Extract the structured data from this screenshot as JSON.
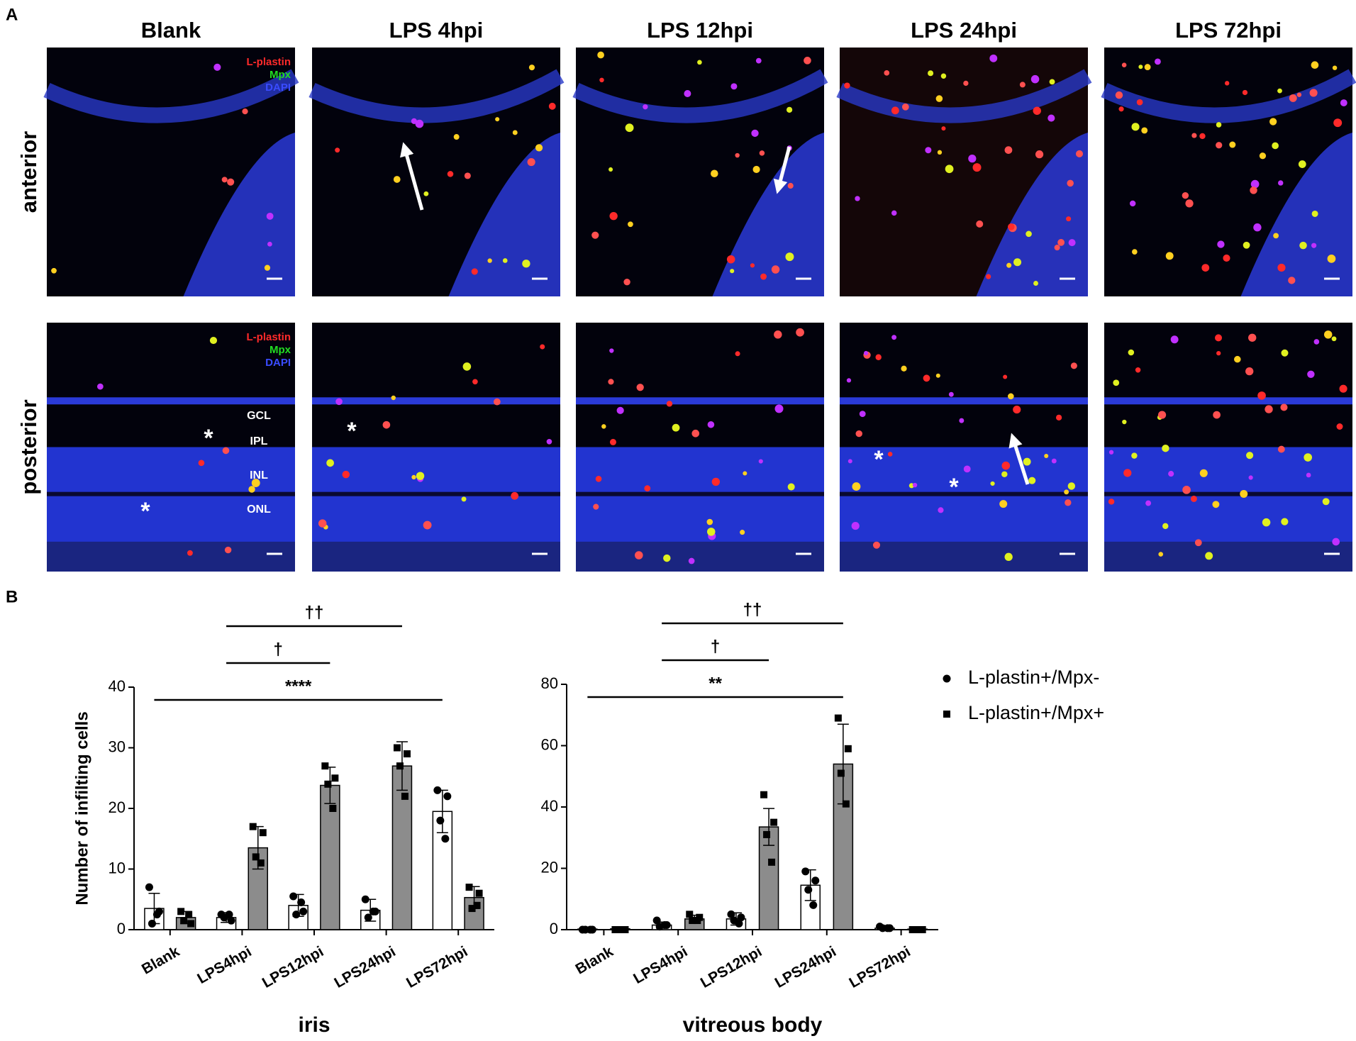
{
  "panel_labels": [
    "A",
    "B"
  ],
  "panel_a": {
    "columns": [
      "Blank",
      "LPS 4hpi",
      "LPS 12hpi",
      "LPS 24hpi",
      "LPS 72hpi"
    ],
    "rows": [
      "anterior",
      "posterior"
    ],
    "channels": [
      {
        "name": "L-plastin",
        "color": "#ff2a2a"
      },
      {
        "name": "Mpx",
        "color": "#22dd22"
      },
      {
        "name": "DAPI",
        "color": "#3a4cff"
      }
    ],
    "layers": [
      "GCL",
      "IPL",
      "INL",
      "ONL"
    ],
    "asterisk": "*"
  },
  "chart_data": [
    {
      "type": "bar",
      "xlabel": "iris",
      "ylabel": "Number of infilting cells",
      "categories": [
        "Blank",
        "LPS4hpi",
        "LPS12hpi",
        "LPS24hpi",
        "LPS72hpi"
      ],
      "ylim": [
        0,
        40
      ],
      "yticks": [
        0,
        10,
        20,
        30,
        40
      ],
      "series": [
        {
          "color": "#ffffff",
          "marker": "circle",
          "values": [
            3.5,
            2,
            4,
            3.2,
            19.5
          ],
          "errors": [
            2.5,
            0.8,
            1.8,
            1.8,
            3.5
          ],
          "points": [
            [
              7,
              3,
              1,
              2.5
            ],
            [
              2.5,
              1.5,
              2,
              2.5
            ],
            [
              5.5,
              3,
              2.5,
              4.5
            ],
            [
              5,
              3,
              2,
              3
            ],
            [
              23,
              22,
              18,
              15
            ]
          ]
        },
        {
          "color": "#8c8c8c",
          "marker": "square",
          "values": [
            2,
            13.5,
            23.8,
            27,
            5.3
          ],
          "errors": [
            1,
            3.5,
            3,
            4,
            1.8
          ],
          "points": [
            [
              3,
              1,
              1.5,
              2.5
            ],
            [
              17,
              16,
              12,
              11
            ],
            [
              27,
              25,
              24,
              20
            ],
            [
              30,
              29,
              27,
              22
            ],
            [
              7,
              6,
              3.5,
              4
            ]
          ]
        }
      ],
      "comparisons": [
        {
          "label": "††",
          "from": 1,
          "to": 3
        },
        {
          "label": "†",
          "from": 1,
          "to": 2
        },
        {
          "label": "****",
          "from": 0,
          "to": 4
        }
      ]
    },
    {
      "type": "bar",
      "xlabel": "vitreous body",
      "categories": [
        "Blank",
        "LPS4hpi",
        "LPS12hpi",
        "LPS24hpi",
        "LPS72hpi"
      ],
      "ylim": [
        0,
        80
      ],
      "yticks": [
        0,
        20,
        40,
        60,
        80
      ],
      "legend": "outside-right",
      "series": [
        {
          "name": "L-plastin+/Mpx-",
          "color": "#ffffff",
          "marker": "circle",
          "values": [
            0.2,
            1.5,
            3.5,
            14.5,
            0.5
          ],
          "errors": [
            0.3,
            1,
            2,
            5,
            0.3
          ],
          "points": [
            [
              0,
              0,
              0,
              0
            ],
            [
              3,
              1.5,
              1,
              1.5
            ],
            [
              5,
              4,
              3,
              2
            ],
            [
              19,
              16,
              13,
              8
            ],
            [
              1,
              0.5,
              0.5,
              0.5
            ]
          ]
        },
        {
          "name": "L-plastin+/Mpx+",
          "color": "#8c8c8c",
          "marker": "square",
          "values": [
            0.3,
            3.5,
            33.5,
            54,
            0.2
          ],
          "errors": [
            0.3,
            1.2,
            6,
            13,
            0.2
          ],
          "points": [
            [
              0,
              0,
              0,
              0
            ],
            [
              5,
              4,
              3,
              3
            ],
            [
              44,
              35,
              31,
              22
            ],
            [
              69,
              59,
              51,
              41
            ],
            [
              0,
              0,
              0,
              0
            ]
          ]
        }
      ],
      "comparisons": [
        {
          "label": "††",
          "from": 1,
          "to": 3
        },
        {
          "label": "†",
          "from": 1,
          "to": 2
        },
        {
          "label": "**",
          "from": 0,
          "to": 3
        }
      ]
    }
  ]
}
